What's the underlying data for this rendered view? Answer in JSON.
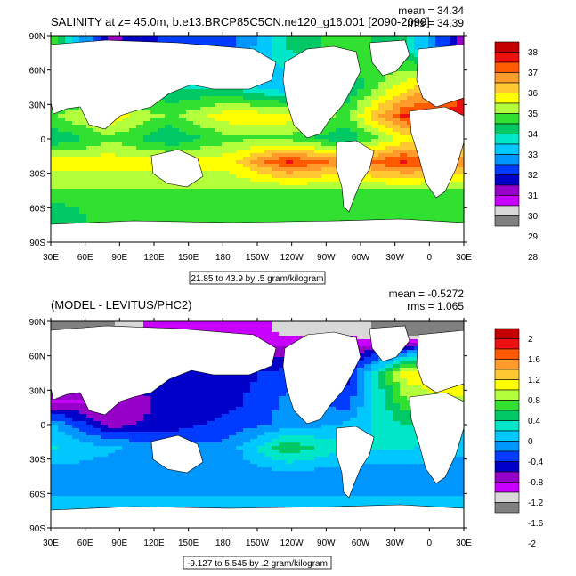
{
  "chart_data": [
    {
      "type": "heatmap",
      "title": "SALINITY at z=  45.0m, b.e13.BRCP85C5CN.ne120_g16.001 [2090-2099]",
      "stats": {
        "mean": "mean = 34.34",
        "rms": "rms = 34.39"
      },
      "x_ticks": [
        "30E",
        "60E",
        "90E",
        "120E",
        "150E",
        "180",
        "150W",
        "120W",
        "90W",
        "60W",
        "30W",
        "0",
        "30E"
      ],
      "y_ticks": [
        "90N",
        "60N",
        "30N",
        "0",
        "30S",
        "60S",
        "90S"
      ],
      "contour_info": "21.85 to 43.9 by .5 gram/kilogram",
      "colorbar": {
        "labels": [
          "38",
          "37",
          "36",
          "35",
          "34",
          "33",
          "32",
          "31",
          "30",
          "29",
          "28"
        ],
        "colors": [
          "#c40000",
          "#ee1010",
          "#ff5a00",
          "#ff9b2b",
          "#ffc832",
          "#ffff00",
          "#b4ff3c",
          "#32e032",
          "#00c864",
          "#00e6c8",
          "#00c8ff",
          "#0096ff",
          "#003cff",
          "#0000c8",
          "#9600c8",
          "#c800ff",
          "#d8d8d8",
          "#808080"
        ]
      },
      "field": [
        {
          "lat": 80,
          "values": [
            34,
            30,
            31,
            31,
            33,
            34,
            33,
            30
          ]
        },
        {
          "lat": 45,
          "values": [
            33,
            33,
            33,
            33,
            32,
            33,
            35,
            37
          ]
        },
        {
          "lat": 20,
          "values": [
            34,
            35,
            34,
            35,
            35,
            34,
            37,
            37
          ]
        },
        {
          "lat": 0,
          "values": [
            33,
            34,
            33,
            34,
            34,
            33,
            35,
            35
          ]
        },
        {
          "lat": -20,
          "values": [
            35,
            35,
            35,
            35,
            37,
            36,
            37,
            36
          ]
        },
        {
          "lat": -45,
          "values": [
            34,
            34,
            34,
            34,
            34,
            34,
            34,
            34
          ]
        },
        {
          "lat": -65,
          "values": [
            33,
            34,
            34,
            34,
            34,
            34,
            34,
            34
          ]
        }
      ]
    },
    {
      "type": "heatmap",
      "title": "(MODEL - LEVITUS/PHC2)",
      "stats": {
        "mean": "mean = -0.5272",
        "rms": "rms = 1.065"
      },
      "x_ticks": [
        "30E",
        "60E",
        "90E",
        "120E",
        "150E",
        "180",
        "150W",
        "120W",
        "90W",
        "60W",
        "30W",
        "0",
        "30E"
      ],
      "y_ticks": [
        "90N",
        "60N",
        "30N",
        "0",
        "30S",
        "60S",
        "90S"
      ],
      "contour_info": "-9.127 to 5.545 by .2 gram/kilogram",
      "colorbar": {
        "labels": [
          "2",
          "1.6",
          "1.2",
          "0.8",
          "0.4",
          "0",
          "-0.4",
          "-0.8",
          "-1.2",
          "-1.6",
          "-2"
        ],
        "colors": [
          "#c40000",
          "#ee1010",
          "#ff5a00",
          "#ff9b2b",
          "#ffc832",
          "#ffff00",
          "#b4ff3c",
          "#32e032",
          "#00c864",
          "#00e6c8",
          "#00c8ff",
          "#0096ff",
          "#003cff",
          "#0000c8",
          "#9600c8",
          "#c800ff",
          "#d8d8d8",
          "#808080"
        ]
      },
      "field": [
        {
          "lat": 80,
          "values": [
            -1.8,
            -1.8,
            -1.4,
            -1.4,
            -1.6,
            -1.6,
            -2.0,
            -1.8
          ]
        },
        {
          "lat": 45,
          "values": [
            -0.6,
            -1.0,
            -1.0,
            -1.0,
            -0.8,
            -1.0,
            0.8,
            1.2
          ]
        },
        {
          "lat": 20,
          "values": [
            -1.4,
            -1.4,
            -1.0,
            -1.0,
            -0.6,
            -0.8,
            0.4,
            0.6
          ]
        },
        {
          "lat": 0,
          "values": [
            -0.4,
            -1.2,
            -1.0,
            -0.8,
            -0.6,
            -0.4,
            0.0,
            -0.2
          ]
        },
        {
          "lat": -20,
          "values": [
            -0.2,
            -0.4,
            -0.6,
            -0.6,
            0.2,
            -0.2,
            -0.2,
            -0.4
          ]
        },
        {
          "lat": -45,
          "values": [
            -0.6,
            -0.6,
            -0.6,
            -0.6,
            -0.6,
            -0.6,
            -0.6,
            -0.6
          ]
        },
        {
          "lat": -65,
          "values": [
            -0.4,
            -0.4,
            -0.4,
            -0.4,
            -0.4,
            -0.4,
            -0.4,
            -0.4
          ]
        }
      ]
    }
  ]
}
